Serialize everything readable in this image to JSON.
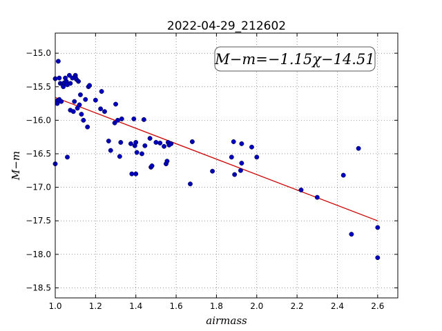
{
  "chart_data": {
    "type": "scatter",
    "title": "2022-04-29_212602",
    "xlabel": "airmass",
    "ylabel": "M−m",
    "xlim": [
      1.0,
      2.7
    ],
    "ylim": [
      -18.65,
      -14.7
    ],
    "xticks": [
      "1.0",
      "1.2",
      "1.4",
      "1.6",
      "1.8",
      "2.0",
      "2.2",
      "2.4",
      "2.6"
    ],
    "xtick_values": [
      1.0,
      1.2,
      1.4,
      1.6,
      1.8,
      2.0,
      2.2,
      2.4,
      2.6
    ],
    "yticks": [
      "−15.0",
      "−15.5",
      "−16.0",
      "−16.5",
      "−17.0",
      "−17.5",
      "−18.0",
      "−18.5"
    ],
    "ytick_values": [
      -15.0,
      -15.5,
      -16.0,
      -16.5,
      -17.0,
      -17.5,
      -18.0,
      -18.5
    ],
    "grid": true,
    "annotation": "M−m=−1.15χ−14.51",
    "fit": {
      "slope": -1.15,
      "intercept": -14.51,
      "x_range": [
        1.0,
        2.6
      ],
      "color": "#cc0000"
    },
    "points_color": "#0000bb",
    "points": [
      [
        1.0,
        -15.38
      ],
      [
        1.0,
        -16.65
      ],
      [
        1.01,
        -15.71
      ],
      [
        1.01,
        -15.75
      ],
      [
        1.015,
        -15.12
      ],
      [
        1.02,
        -15.37
      ],
      [
        1.02,
        -15.69
      ],
      [
        1.025,
        -15.45
      ],
      [
        1.03,
        -15.72
      ],
      [
        1.035,
        -15.46
      ],
      [
        1.04,
        -15.5
      ],
      [
        1.045,
        -15.44
      ],
      [
        1.05,
        -15.37
      ],
      [
        1.055,
        -15.42
      ],
      [
        1.06,
        -15.47
      ],
      [
        1.06,
        -16.55
      ],
      [
        1.07,
        -15.33
      ],
      [
        1.075,
        -15.45
      ],
      [
        1.075,
        -15.85
      ],
      [
        1.085,
        -15.37
      ],
      [
        1.09,
        -15.87
      ],
      [
        1.095,
        -15.72
      ],
      [
        1.1,
        -15.33
      ],
      [
        1.1,
        -15.36
      ],
      [
        1.105,
        -15.39
      ],
      [
        1.11,
        -15.82
      ],
      [
        1.115,
        -15.42
      ],
      [
        1.12,
        -15.77
      ],
      [
        1.125,
        -15.62
      ],
      [
        1.13,
        -15.91
      ],
      [
        1.14,
        -16.0
      ],
      [
        1.15,
        -15.69
      ],
      [
        1.16,
        -16.1
      ],
      [
        1.165,
        -15.5
      ],
      [
        1.17,
        -15.48
      ],
      [
        1.2,
        -15.7
      ],
      [
        1.225,
        -15.83
      ],
      [
        1.23,
        -15.57
      ],
      [
        1.245,
        -15.87
      ],
      [
        1.265,
        -16.31
      ],
      [
        1.275,
        -16.45
      ],
      [
        1.295,
        -16.04
      ],
      [
        1.3,
        -15.76
      ],
      [
        1.31,
        -16.0
      ],
      [
        1.32,
        -16.54
      ],
      [
        1.325,
        -16.33
      ],
      [
        1.33,
        -15.98
      ],
      [
        1.375,
        -16.35
      ],
      [
        1.38,
        -16.8
      ],
      [
        1.39,
        -15.98
      ],
      [
        1.395,
        -16.38
      ],
      [
        1.4,
        -16.33
      ],
      [
        1.4,
        -16.8
      ],
      [
        1.405,
        -16.48
      ],
      [
        1.43,
        -16.5
      ],
      [
        1.44,
        -15.99
      ],
      [
        1.445,
        -16.38
      ],
      [
        1.47,
        -16.27
      ],
      [
        1.475,
        -16.7
      ],
      [
        1.48,
        -16.68
      ],
      [
        1.5,
        -16.33
      ],
      [
        1.52,
        -16.34
      ],
      [
        1.54,
        -16.39
      ],
      [
        1.55,
        -16.65
      ],
      [
        1.555,
        -16.61
      ],
      [
        1.56,
        -16.33
      ],
      [
        1.565,
        -16.37
      ],
      [
        1.575,
        -16.35
      ],
      [
        1.67,
        -16.95
      ],
      [
        1.68,
        -16.32
      ],
      [
        1.78,
        -16.76
      ],
      [
        1.875,
        -16.55
      ],
      [
        1.885,
        -16.32
      ],
      [
        1.89,
        -16.81
      ],
      [
        1.92,
        -16.75
      ],
      [
        1.925,
        -16.35
      ],
      [
        1.925,
        -16.64
      ],
      [
        1.975,
        -16.4
      ],
      [
        2.0,
        -16.55
      ],
      [
        2.22,
        -17.04
      ],
      [
        2.3,
        -17.15
      ],
      [
        2.43,
        -16.82
      ],
      [
        2.47,
        -17.7
      ],
      [
        2.505,
        -16.42
      ],
      [
        2.6,
        -17.6
      ],
      [
        2.6,
        -18.05
      ]
    ]
  }
}
